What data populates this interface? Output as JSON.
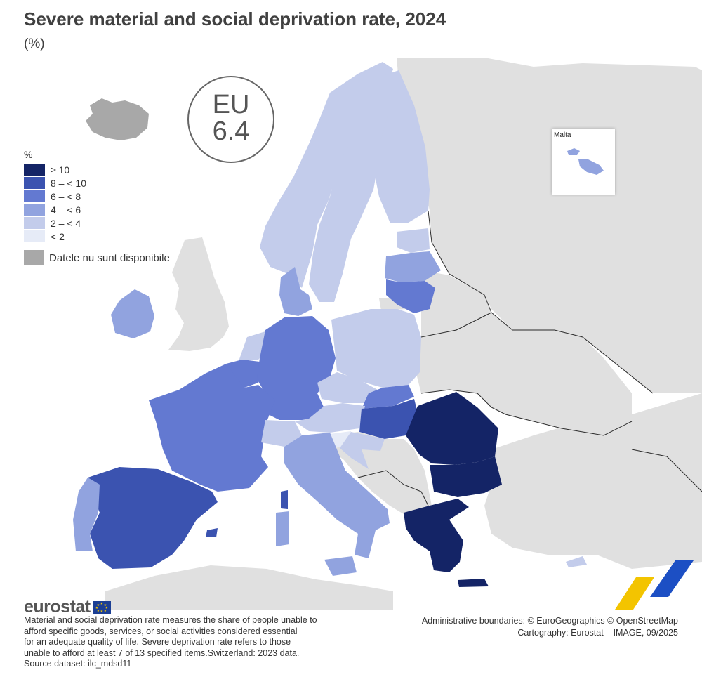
{
  "header": {
    "title": "Severe material and social deprivation rate, 2024",
    "subtitle": "(%)"
  },
  "eu_badge": {
    "label": "EU",
    "value": "6.4"
  },
  "legend": {
    "title": "%",
    "classes": [
      {
        "label": "≥ 10",
        "color": "#142466"
      },
      {
        "label": "8 – < 10",
        "color": "#3b53b0"
      },
      {
        "label": "6 – < 8",
        "color": "#6379d1"
      },
      {
        "label": "4 – < 6",
        "color": "#91a3df"
      },
      {
        "label": "2 – < 4",
        "color": "#c3cceb"
      },
      {
        "label": "< 2",
        "color": "#e6ebf7"
      }
    ],
    "no_data": {
      "label": "Datele nu sunt disponibile",
      "color": "#a8a8a8"
    }
  },
  "inset": {
    "label": "Malta"
  },
  "colors": {
    "non_eu_land": "#e0e0e0",
    "sea": "#ffffff",
    "border": "#2a2a2a"
  },
  "map_regions": [
    {
      "region": "Iceland",
      "class": "no_data"
    },
    {
      "region": "Norway",
      "class": "2 – < 4"
    },
    {
      "region": "Sweden",
      "class": "2 – < 4"
    },
    {
      "region": "Finland",
      "class": "2 – < 4"
    },
    {
      "region": "Estonia",
      "class": "2 – < 4"
    },
    {
      "region": "Latvia",
      "class": "4 – < 6"
    },
    {
      "region": "Lithuania",
      "class": "6 – < 8"
    },
    {
      "region": "Denmark",
      "class": "4 – < 6"
    },
    {
      "region": "Ireland",
      "class": "4 – < 6"
    },
    {
      "region": "Netherlands",
      "class": "2 – < 4"
    },
    {
      "region": "Belgium",
      "class": "6 – < 8"
    },
    {
      "region": "Germany",
      "class": "6 – < 8"
    },
    {
      "region": "Poland",
      "class": "2 – < 4"
    },
    {
      "region": "Czechia",
      "class": "2 – < 4"
    },
    {
      "region": "Slovakia",
      "class": "6 – < 8"
    },
    {
      "region": "Austria",
      "class": "2 – < 4"
    },
    {
      "region": "Hungary",
      "class": "8 – < 10"
    },
    {
      "region": "Slovenia",
      "class": "< 2"
    },
    {
      "region": "Croatia",
      "class": "2 – < 4"
    },
    {
      "region": "France",
      "class": "6 – < 8"
    },
    {
      "region": "Switzerland",
      "class": "2 – < 4"
    },
    {
      "region": "Italy",
      "class": "4 – < 6"
    },
    {
      "region": "Spain",
      "class": "8 – < 10"
    },
    {
      "region": "Portugal",
      "class": "4 – < 6"
    },
    {
      "region": "Romania",
      "class": "≥ 10"
    },
    {
      "region": "Bulgaria",
      "class": "≥ 10"
    },
    {
      "region": "Greece",
      "class": "≥ 10"
    },
    {
      "region": "Cyprus",
      "class": "2 – < 4"
    },
    {
      "region": "Malta",
      "class": "4 – < 6"
    }
  ],
  "footer": {
    "logo_text": "eurostat",
    "note_lines": [
      "Material and social deprivation rate measures the share of people unable to",
      "afford specific goods, services, or social activities considered essential",
      "for an adequate quality of life. Severe deprivation rate refers to those",
      "unable to afford at least 7 of 13 specified items.Switzerland: 2023 data.",
      "Source dataset: ilc_mdsd11"
    ],
    "credits": [
      "Administrative boundaries: © EuroGeographics © OpenStreetMap",
      "Cartography: Eurostat – IMAGE, 09/2025"
    ]
  }
}
